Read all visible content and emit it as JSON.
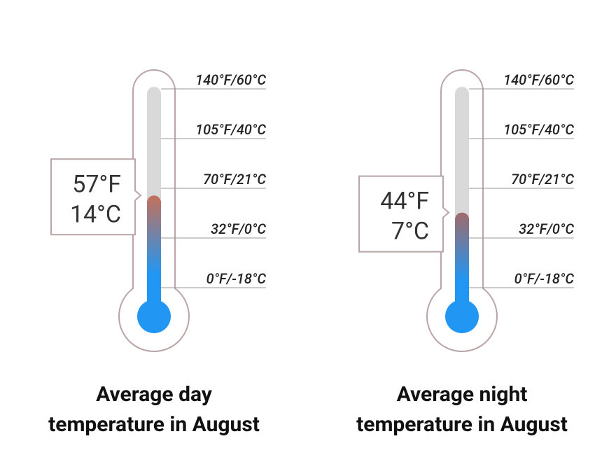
{
  "chart_data": [
    {
      "type": "thermometer",
      "title": "Average day temperature in August",
      "value": 57,
      "value_label": "57°F",
      "value_c": 14,
      "value_c_label": "14°C",
      "ylim": [
        0,
        140
      ],
      "yticks": [
        {
          "value": 140,
          "label": "140°F/60°C"
        },
        {
          "value": 105,
          "label": "105°F/40°C"
        },
        {
          "value": 70,
          "label": "70°F/21°C"
        },
        {
          "value": 32,
          "label": "32°F/0°C"
        },
        {
          "value": 0,
          "label": "0°F/-18°C"
        }
      ],
      "color": "#2196f3",
      "top_color": "#c4705a"
    },
    {
      "type": "thermometer",
      "title": "Average night temperature in August",
      "value": 44,
      "value_label": "44°F",
      "value_c": 7,
      "value_c_label": "7°C",
      "ylim": [
        0,
        140
      ],
      "yticks": [
        {
          "value": 140,
          "label": "140°F/60°C"
        },
        {
          "value": 105,
          "label": "105°F/40°C"
        },
        {
          "value": 70,
          "label": "70°F/21°C"
        },
        {
          "value": 32,
          "label": "32°F/0°C"
        },
        {
          "value": 0,
          "label": "0°F/-18°C"
        }
      ],
      "color": "#2196f3",
      "top_color": "#a06a6a"
    }
  ]
}
